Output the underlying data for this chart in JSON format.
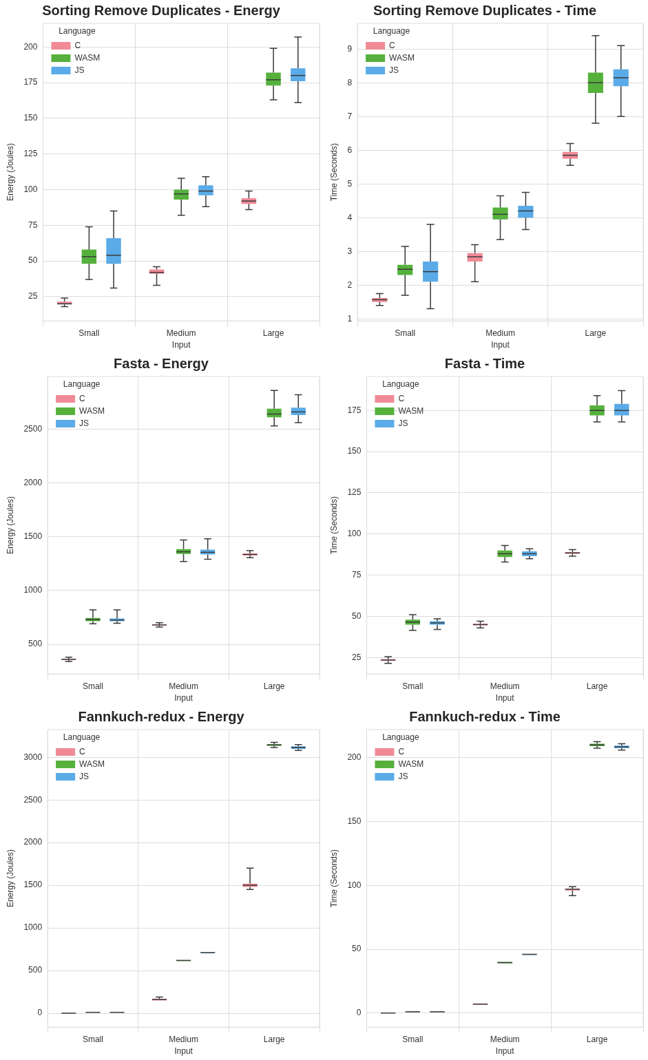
{
  "chart_data": [
    {
      "type": "box",
      "title": "Sorting Remove Duplicates - Energy",
      "xlabel": "Input",
      "ylabel": "Energy (Joules)",
      "legend_title": "Language",
      "legend": "top left",
      "grid": true,
      "categories": [
        "Small",
        "Medium",
        "Large"
      ],
      "ylim": [
        8,
        216.5
      ],
      "yticks": [
        25,
        50,
        75,
        100,
        125,
        150,
        175,
        200
      ],
      "series": [
        {
          "name": "C",
          "color": "#f08a96",
          "boxes": [
            {
              "low": 18,
              "q1": 19.5,
              "median": 20,
              "q3": 21.5,
              "high": 24
            },
            {
              "low": 33,
              "q1": 41,
              "median": 42,
              "q3": 44,
              "high": 46
            },
            {
              "low": 86,
              "q1": 90,
              "median": 92,
              "q3": 94,
              "high": 99
            }
          ]
        },
        {
          "name": "WASM",
          "color": "#55b13c",
          "boxes": [
            {
              "low": 37,
              "q1": 48,
              "median": 53,
              "q3": 58,
              "high": 74
            },
            {
              "low": 82,
              "q1": 93,
              "median": 97,
              "q3": 100,
              "high": 108
            },
            {
              "low": 163,
              "q1": 173,
              "median": 177,
              "q3": 182,
              "high": 199
            }
          ]
        },
        {
          "name": "JS",
          "color": "#5aabe8",
          "boxes": [
            {
              "low": 31,
              "q1": 48,
              "median": 54,
              "q3": 66,
              "high": 85
            },
            {
              "low": 88,
              "q1": 96,
              "median": 99,
              "q3": 103,
              "high": 109
            },
            {
              "low": 161,
              "q1": 176,
              "median": 180,
              "q3": 185,
              "high": 207
            }
          ]
        }
      ]
    },
    {
      "type": "box",
      "title": "Sorting Remove Duplicates - Time",
      "xlabel": "Input",
      "ylabel": "Time (Seconds)",
      "legend_title": "Language",
      "legend": "top left",
      "grid": true,
      "categories": [
        "Small",
        "Medium",
        "Large"
      ],
      "ylim": [
        0.94,
        9.76
      ],
      "yticks": [
        1,
        2,
        3,
        4,
        5,
        6,
        7,
        8,
        9
      ],
      "series": [
        {
          "name": "C",
          "color": "#f08a96",
          "boxes": [
            {
              "low": 1.4,
              "q1": 1.5,
              "median": 1.57,
              "q3": 1.62,
              "high": 1.75
            },
            {
              "low": 2.1,
              "q1": 2.7,
              "median": 2.84,
              "q3": 2.95,
              "high": 3.2
            },
            {
              "low": 5.55,
              "q1": 5.75,
              "median": 5.85,
              "q3": 5.95,
              "high": 6.2
            }
          ]
        },
        {
          "name": "WASM",
          "color": "#55b13c",
          "boxes": [
            {
              "low": 1.7,
              "q1": 2.3,
              "median": 2.47,
              "q3": 2.6,
              "high": 3.15
            },
            {
              "low": 3.35,
              "q1": 3.95,
              "median": 4.1,
              "q3": 4.3,
              "high": 4.65
            },
            {
              "low": 6.8,
              "q1": 7.7,
              "median": 8.0,
              "q3": 8.3,
              "high": 9.4
            }
          ]
        },
        {
          "name": "JS",
          "color": "#5aabe8",
          "boxes": [
            {
              "low": 1.3,
              "q1": 2.1,
              "median": 2.4,
              "q3": 2.7,
              "high": 3.8
            },
            {
              "low": 3.65,
              "q1": 4.0,
              "median": 4.2,
              "q3": 4.35,
              "high": 4.75
            },
            {
              "low": 7.0,
              "q1": 7.9,
              "median": 8.15,
              "q3": 8.4,
              "high": 9.1
            }
          ]
        }
      ]
    },
    {
      "type": "box",
      "title": "Fasta - Energy",
      "xlabel": "Input",
      "ylabel": "Energy (Joules)",
      "legend_title": "Language",
      "legend": "top left",
      "grid": true,
      "categories": [
        "Small",
        "Medium",
        "Large"
      ],
      "ylim": [
        224,
        2989
      ],
      "yticks": [
        500,
        1000,
        1500,
        2000,
        2500
      ],
      "series": [
        {
          "name": "C",
          "color": "#f08a96",
          "boxes": [
            {
              "low": 340,
              "q1": 355,
              "median": 360,
              "q3": 365,
              "high": 380
            },
            {
              "low": 660,
              "q1": 675,
              "median": 680,
              "q3": 685,
              "high": 700
            },
            {
              "low": 1305,
              "q1": 1325,
              "median": 1335,
              "q3": 1345,
              "high": 1370
            }
          ]
        },
        {
          "name": "WASM",
          "color": "#55b13c",
          "boxes": [
            {
              "low": 690,
              "q1": 715,
              "median": 730,
              "q3": 745,
              "high": 820
            },
            {
              "low": 1270,
              "q1": 1340,
              "median": 1360,
              "q3": 1385,
              "high": 1470
            },
            {
              "low": 2530,
              "q1": 2610,
              "median": 2640,
              "q3": 2690,
              "high": 2860
            }
          ]
        },
        {
          "name": "JS",
          "color": "#5aabe8",
          "boxes": [
            {
              "low": 695,
              "q1": 715,
              "median": 725,
              "q3": 740,
              "high": 820
            },
            {
              "low": 1290,
              "q1": 1335,
              "median": 1355,
              "q3": 1380,
              "high": 1480
            },
            {
              "low": 2560,
              "q1": 2630,
              "median": 2660,
              "q3": 2700,
              "high": 2820
            }
          ]
        }
      ]
    },
    {
      "type": "box",
      "title": "Fasta - Time",
      "xlabel": "Input",
      "ylabel": "Time (Seconds)",
      "legend_title": "Language",
      "legend": "top left",
      "grid": true,
      "categories": [
        "Small",
        "Medium",
        "Large"
      ],
      "ylim": [
        15,
        195.6
      ],
      "yticks": [
        25,
        50,
        75,
        100,
        125,
        150,
        175
      ],
      "series": [
        {
          "name": "C",
          "color": "#f08a96",
          "boxes": [
            {
              "low": 21.5,
              "q1": 23,
              "median": 23.5,
              "q3": 24,
              "high": 25.5
            },
            {
              "low": 43,
              "q1": 44.5,
              "median": 45,
              "q3": 45.5,
              "high": 47
            },
            {
              "low": 86.5,
              "q1": 88,
              "median": 88.5,
              "q3": 89,
              "high": 90.5
            }
          ]
        },
        {
          "name": "WASM",
          "color": "#55b13c",
          "boxes": [
            {
              "low": 41.5,
              "q1": 45,
              "median": 46.5,
              "q3": 48,
              "high": 51
            },
            {
              "low": 83,
              "q1": 86,
              "median": 88,
              "q3": 90,
              "high": 93
            },
            {
              "low": 168,
              "q1": 172,
              "median": 175,
              "q3": 178,
              "high": 184
            }
          ]
        },
        {
          "name": "JS",
          "color": "#5aabe8",
          "boxes": [
            {
              "low": 42,
              "q1": 45,
              "median": 46,
              "q3": 47,
              "high": 48.5
            },
            {
              "low": 85,
              "q1": 86.5,
              "median": 88,
              "q3": 89.5,
              "high": 91
            },
            {
              "low": 168,
              "q1": 172,
              "median": 175,
              "q3": 179,
              "high": 187
            }
          ]
        }
      ]
    },
    {
      "type": "box",
      "title": "Fannkuch-redux - Energy",
      "xlabel": "Input",
      "ylabel": "Energy (Joules)",
      "legend_title": "Language",
      "legend": "top left",
      "grid": true,
      "categories": [
        "Small",
        "Medium",
        "Large"
      ],
      "ylim": [
        -163,
        3325
      ],
      "yticks": [
        0,
        500,
        1000,
        1500,
        2000,
        2500,
        3000
      ],
      "series": [
        {
          "name": "C",
          "color": "#f08a96",
          "boxes": [
            {
              "low": -2,
              "q1": -2,
              "median": 0,
              "q3": 2,
              "high": 2
            },
            {
              "low": 150,
              "q1": 150,
              "median": 160,
              "q3": 170,
              "high": 190
            },
            {
              "low": 1450,
              "q1": 1480,
              "median": 1500,
              "q3": 1520,
              "high": 1700
            }
          ]
        },
        {
          "name": "WASM",
          "color": "#55b13c",
          "boxes": [
            {
              "low": 8,
              "q1": 8,
              "median": 10,
              "q3": 12,
              "high": 12
            },
            {
              "low": 612,
              "q1": 612,
              "median": 618,
              "q3": 624,
              "high": 624
            },
            {
              "low": 3115,
              "q1": 3135,
              "median": 3145,
              "q3": 3155,
              "high": 3175
            }
          ]
        },
        {
          "name": "JS",
          "color": "#5aabe8",
          "boxes": [
            {
              "low": 8,
              "q1": 8,
              "median": 10,
              "q3": 12,
              "high": 12
            },
            {
              "low": 705,
              "q1": 705,
              "median": 710,
              "q3": 715,
              "high": 715
            },
            {
              "low": 3080,
              "q1": 3100,
              "median": 3115,
              "q3": 3130,
              "high": 3150
            }
          ]
        }
      ]
    },
    {
      "type": "box",
      "title": "Fannkuch-redux - Time",
      "xlabel": "Input",
      "ylabel": "Time (Seconds)",
      "legend_title": "Language",
      "legend": "top left",
      "grid": true,
      "categories": [
        "Small",
        "Medium",
        "Large"
      ],
      "ylim": [
        -11,
        222
      ],
      "yticks": [
        0,
        50,
        100,
        150,
        200
      ],
      "series": [
        {
          "name": "C",
          "color": "#f08a96",
          "boxes": [
            {
              "low": -0.1,
              "q1": -0.1,
              "median": 0,
              "q3": 0.1,
              "high": 0.1
            },
            {
              "low": 6.5,
              "q1": 6.5,
              "median": 7,
              "q3": 7.3,
              "high": 7.3
            },
            {
              "low": 92,
              "q1": 96,
              "median": 97,
              "q3": 97.5,
              "high": 99
            }
          ]
        },
        {
          "name": "WASM",
          "color": "#55b13c",
          "boxes": [
            {
              "low": 0.8,
              "q1": 0.8,
              "median": 1,
              "q3": 1.2,
              "high": 1.2
            },
            {
              "low": 39,
              "q1": 39,
              "median": 39.5,
              "q3": 40,
              "high": 40
            },
            {
              "low": 207.5,
              "q1": 209,
              "median": 210,
              "q3": 211,
              "high": 212.5
            }
          ]
        },
        {
          "name": "JS",
          "color": "#5aabe8",
          "boxes": [
            {
              "low": 0.8,
              "q1": 0.8,
              "median": 1,
              "q3": 1.2,
              "high": 1.2
            },
            {
              "low": 45.5,
              "q1": 45.5,
              "median": 46,
              "q3": 46.3,
              "high": 46.3
            },
            {
              "low": 206,
              "q1": 207.5,
              "median": 208.5,
              "q3": 209.5,
              "high": 211
            }
          ]
        }
      ]
    }
  ]
}
